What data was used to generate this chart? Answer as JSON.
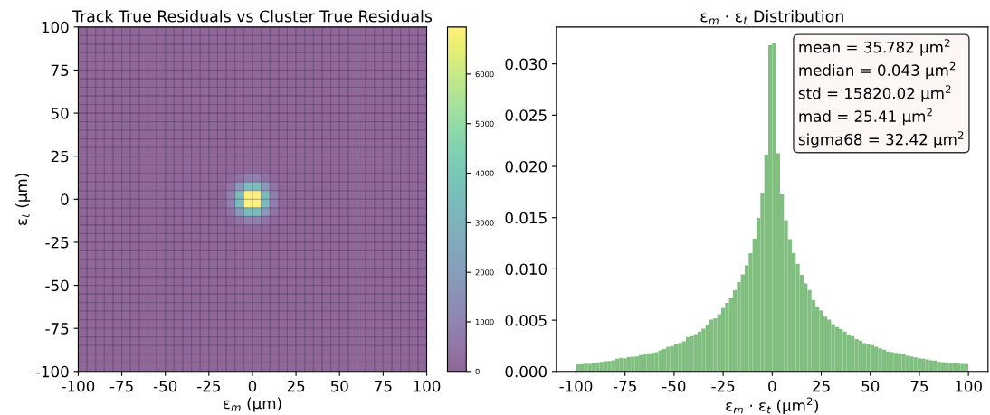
{
  "chart_data": [
    {
      "type": "heatmap",
      "title": "Track True Residuals vs Cluster True Residuals",
      "xlabel": "ε$_{m}$ (μm)",
      "ylabel": "ε$_{t}$ (μm)",
      "xlim": [
        -100,
        100
      ],
      "ylim": [
        -100,
        100
      ],
      "xticks": [
        -100,
        -75,
        -50,
        -25,
        0,
        25,
        50,
        75,
        100
      ],
      "yticks": [
        -100,
        -75,
        -50,
        -25,
        0,
        25,
        50,
        75,
        100
      ],
      "clim": [
        0,
        6950
      ],
      "cticks": [
        0,
        1000,
        2000,
        3000,
        4000,
        5000,
        6000
      ],
      "cells": [
        [
          0,
          0,
          0,
          0,
          0,
          0,
          0,
          0,
          0,
          0,
          0,
          0,
          0,
          0,
          0,
          0,
          0,
          0,
          0,
          0,
          0,
          0,
          0,
          0,
          0,
          0,
          0,
          0,
          0,
          0,
          0,
          0,
          0,
          0,
          0,
          0,
          0,
          0,
          0,
          0
        ],
        [
          0,
          0,
          0,
          0,
          0,
          0,
          0,
          0,
          0,
          0,
          0,
          0,
          0,
          0,
          0,
          0,
          0,
          0,
          0,
          0,
          0,
          0,
          0,
          0,
          0,
          0,
          0,
          0,
          0,
          0,
          0,
          0,
          0,
          0,
          0,
          0,
          0,
          0,
          0,
          0
        ],
        [
          0,
          0,
          0,
          0,
          0,
          0,
          0,
          0,
          0,
          0,
          0,
          0,
          0,
          0,
          0,
          0,
          0,
          0,
          0,
          0,
          0,
          0,
          0,
          0,
          0,
          0,
          0,
          0,
          0,
          0,
          0,
          0,
          0,
          0,
          0,
          0,
          0,
          0,
          0,
          0
        ],
        [
          0,
          0,
          0,
          0,
          0,
          0,
          0,
          0,
          0,
          0,
          0,
          0,
          0,
          0,
          0,
          0,
          0,
          0,
          0,
          0,
          0,
          0,
          0,
          0,
          0,
          0,
          0,
          0,
          0,
          0,
          0,
          0,
          0,
          0,
          0,
          0,
          0,
          0,
          0,
          0
        ],
        [
          0,
          0,
          0,
          0,
          0,
          0,
          0,
          0,
          0,
          0,
          0,
          0,
          0,
          0,
          0,
          0,
          0,
          0,
          0,
          0,
          0,
          0,
          0,
          0,
          0,
          0,
          0,
          0,
          0,
          0,
          0,
          0,
          0,
          0,
          0,
          0,
          0,
          0,
          0,
          0
        ],
        [
          0,
          0,
          0,
          0,
          0,
          0,
          0,
          0,
          0,
          0,
          0,
          0,
          0,
          0,
          0,
          0,
          0,
          0,
          0,
          0,
          0,
          0,
          0,
          0,
          0,
          0,
          0,
          0,
          0,
          0,
          0,
          0,
          0,
          0,
          0,
          0,
          0,
          0,
          0,
          0
        ],
        [
          0,
          0,
          0,
          0,
          0,
          0,
          0,
          0,
          0,
          0,
          0,
          0,
          0,
          0,
          0,
          0,
          0,
          0,
          0,
          0,
          0,
          0,
          0,
          0,
          0,
          0,
          0,
          0,
          0,
          0,
          0,
          0,
          0,
          0,
          0,
          0,
          0,
          0,
          0,
          0
        ],
        [
          0,
          0,
          0,
          0,
          0,
          0,
          0,
          0,
          0,
          0,
          0,
          0,
          0,
          0,
          0,
          0,
          0,
          0,
          0,
          0,
          0,
          0,
          0,
          0,
          0,
          0,
          0,
          0,
          0,
          0,
          0,
          0,
          0,
          0,
          0,
          0,
          0,
          0,
          0,
          0
        ],
        [
          0,
          0,
          0,
          0,
          0,
          0,
          0,
          0,
          0,
          0,
          0,
          0,
          0,
          0,
          0,
          0,
          0,
          0,
          0,
          0,
          0,
          0,
          0,
          0,
          0,
          0,
          0,
          0,
          0,
          0,
          0,
          0,
          0,
          0,
          0,
          0,
          0,
          0,
          0,
          0
        ],
        [
          0,
          0,
          0,
          0,
          0,
          0,
          0,
          0,
          0,
          0,
          0,
          0,
          0,
          0,
          0,
          0,
          0,
          0,
          0,
          0,
          0,
          0,
          0,
          0,
          0,
          0,
          0,
          0,
          0,
          0,
          0,
          0,
          0,
          0,
          0,
          0,
          0,
          0,
          0,
          0
        ],
        [
          0,
          0,
          0,
          0,
          0,
          0,
          0,
          0,
          0,
          0,
          0,
          0,
          0,
          0,
          0,
          0,
          0,
          0,
          0,
          0,
          0,
          0,
          0,
          0,
          0,
          0,
          0,
          0,
          0,
          0,
          0,
          0,
          0,
          0,
          0,
          0,
          0,
          0,
          0,
          0
        ],
        [
          0,
          0,
          0,
          0,
          0,
          0,
          0,
          0,
          0,
          0,
          0,
          0,
          0,
          0,
          0,
          0,
          0,
          0,
          0,
          0,
          0,
          0,
          0,
          0,
          0,
          0,
          0,
          0,
          0,
          0,
          0,
          0,
          0,
          0,
          0,
          0,
          0,
          0,
          0,
          0
        ],
        [
          0,
          0,
          0,
          0,
          0,
          0,
          0,
          0,
          0,
          0,
          0,
          0,
          0,
          0,
          0,
          0,
          0,
          0,
          0,
          0,
          0,
          0,
          0,
          0,
          0,
          0,
          0,
          0,
          0,
          0,
          0,
          0,
          0,
          0,
          0,
          0,
          0,
          0,
          0,
          0
        ],
        [
          0,
          0,
          0,
          0,
          0,
          0,
          0,
          0,
          0,
          0,
          0,
          0,
          0,
          0,
          0,
          0,
          0,
          0,
          0,
          0,
          0,
          0,
          0,
          0,
          0,
          0,
          0,
          0,
          0,
          0,
          0,
          0,
          0,
          0,
          0,
          0,
          0,
          0,
          0,
          0
        ],
        [
          0,
          0,
          0,
          0,
          0,
          0,
          0,
          0,
          0,
          0,
          0,
          0,
          0,
          0,
          0,
          0,
          0,
          0,
          0,
          0,
          0,
          0,
          0,
          0,
          0,
          0,
          0,
          0,
          0,
          0,
          0,
          0,
          0,
          0,
          0,
          0,
          0,
          0,
          0,
          0
        ],
        [
          0,
          0,
          0,
          0,
          0,
          0,
          0,
          0,
          0,
          0,
          0,
          0,
          0,
          0,
          0,
          0,
          0,
          0,
          0,
          0,
          0,
          0,
          0,
          0,
          0,
          0,
          0,
          0,
          0,
          0,
          0,
          0,
          0,
          0,
          0,
          0,
          0,
          0,
          0,
          0
        ],
        [
          0,
          0,
          0,
          0,
          0,
          0,
          0,
          0,
          0,
          0,
          0,
          0,
          0,
          0,
          0,
          0,
          2,
          13,
          50,
          105,
          105,
          50,
          13,
          2,
          0,
          0,
          0,
          0,
          0,
          0,
          0,
          0,
          0,
          0,
          0,
          0,
          0,
          0,
          0,
          0
        ],
        [
          0,
          0,
          0,
          0,
          0,
          0,
          0,
          0,
          0,
          0,
          0,
          0,
          0,
          0,
          0,
          0,
          13,
          105,
          430,
          860,
          860,
          430,
          105,
          13,
          0,
          0,
          0,
          0,
          0,
          0,
          0,
          0,
          0,
          0,
          0,
          0,
          0,
          0,
          0,
          0
        ],
        [
          0,
          0,
          0,
          0,
          0,
          0,
          0,
          0,
          0,
          0,
          0,
          0,
          0,
          0,
          0,
          0,
          50,
          430,
          1720,
          3440,
          3440,
          1720,
          430,
          50,
          0,
          0,
          0,
          0,
          0,
          0,
          0,
          0,
          0,
          0,
          0,
          0,
          0,
          0,
          0,
          0
        ],
        [
          0,
          0,
          0,
          0,
          0,
          0,
          0,
          0,
          0,
          0,
          0,
          0,
          0,
          0,
          0,
          0,
          105,
          860,
          3440,
          6900,
          6900,
          3440,
          860,
          105,
          0,
          0,
          0,
          0,
          0,
          0,
          0,
          0,
          0,
          0,
          0,
          0,
          0,
          0,
          0,
          0
        ],
        [
          0,
          0,
          0,
          0,
          0,
          0,
          0,
          0,
          0,
          0,
          0,
          0,
          0,
          0,
          0,
          0,
          105,
          860,
          3440,
          6900,
          6900,
          3440,
          860,
          105,
          0,
          0,
          0,
          0,
          0,
          0,
          0,
          0,
          0,
          0,
          0,
          0,
          0,
          0,
          0,
          0
        ],
        [
          0,
          0,
          0,
          0,
          0,
          0,
          0,
          0,
          0,
          0,
          0,
          0,
          0,
          0,
          0,
          0,
          50,
          430,
          1720,
          3440,
          3440,
          1720,
          430,
          50,
          0,
          0,
          0,
          0,
          0,
          0,
          0,
          0,
          0,
          0,
          0,
          0,
          0,
          0,
          0,
          0
        ],
        [
          0,
          0,
          0,
          0,
          0,
          0,
          0,
          0,
          0,
          0,
          0,
          0,
          0,
          0,
          0,
          0,
          13,
          105,
          430,
          860,
          860,
          430,
          105,
          13,
          0,
          0,
          0,
          0,
          0,
          0,
          0,
          0,
          0,
          0,
          0,
          0,
          0,
          0,
          0,
          0
        ],
        [
          0,
          0,
          0,
          0,
          0,
          0,
          0,
          0,
          0,
          0,
          0,
          0,
          0,
          0,
          0,
          0,
          2,
          13,
          50,
          105,
          105,
          50,
          13,
          2,
          0,
          0,
          0,
          0,
          0,
          0,
          0,
          0,
          0,
          0,
          0,
          0,
          0,
          0,
          0,
          0
        ],
        [
          0,
          0,
          0,
          0,
          0,
          0,
          0,
          0,
          0,
          0,
          0,
          0,
          0,
          0,
          0,
          0,
          0,
          0,
          0,
          0,
          0,
          0,
          0,
          0,
          0,
          0,
          0,
          0,
          0,
          0,
          0,
          0,
          0,
          0,
          0,
          0,
          0,
          0,
          0,
          0
        ],
        [
          0,
          0,
          0,
          0,
          0,
          0,
          0,
          0,
          0,
          0,
          0,
          0,
          0,
          0,
          0,
          0,
          0,
          0,
          0,
          0,
          0,
          0,
          0,
          0,
          0,
          0,
          0,
          0,
          0,
          0,
          0,
          0,
          0,
          0,
          0,
          0,
          0,
          0,
          0,
          0
        ],
        [
          0,
          0,
          0,
          0,
          0,
          0,
          0,
          0,
          0,
          0,
          0,
          0,
          0,
          0,
          0,
          0,
          0,
          0,
          0,
          0,
          0,
          0,
          0,
          0,
          0,
          0,
          0,
          0,
          0,
          0,
          0,
          0,
          0,
          0,
          0,
          0,
          0,
          0,
          0,
          0
        ],
        [
          0,
          0,
          0,
          0,
          0,
          0,
          0,
          0,
          0,
          0,
          0,
          0,
          0,
          0,
          0,
          0,
          0,
          0,
          0,
          0,
          0,
          0,
          0,
          0,
          0,
          0,
          0,
          0,
          0,
          0,
          0,
          0,
          0,
          0,
          0,
          0,
          0,
          0,
          0,
          0
        ],
        [
          0,
          0,
          0,
          0,
          0,
          0,
          0,
          0,
          0,
          0,
          0,
          0,
          0,
          0,
          0,
          0,
          0,
          0,
          0,
          0,
          0,
          0,
          0,
          0,
          0,
          0,
          0,
          0,
          0,
          0,
          0,
          0,
          0,
          0,
          0,
          0,
          0,
          0,
          0,
          0
        ],
        [
          0,
          0,
          0,
          0,
          0,
          0,
          0,
          0,
          0,
          0,
          0,
          0,
          0,
          0,
          0,
          0,
          0,
          0,
          0,
          0,
          0,
          0,
          0,
          0,
          0,
          0,
          0,
          0,
          0,
          0,
          0,
          0,
          0,
          0,
          0,
          0,
          0,
          0,
          0,
          0
        ],
        [
          0,
          0,
          0,
          0,
          0,
          0,
          0,
          0,
          0,
          0,
          0,
          0,
          0,
          0,
          0,
          0,
          0,
          0,
          0,
          0,
          0,
          0,
          0,
          0,
          0,
          0,
          0,
          0,
          0,
          0,
          0,
          0,
          0,
          0,
          0,
          0,
          0,
          0,
          0,
          0
        ],
        [
          0,
          0,
          0,
          0,
          0,
          0,
          0,
          0,
          0,
          0,
          0,
          0,
          0,
          0,
          0,
          0,
          0,
          0,
          0,
          0,
          0,
          0,
          0,
          0,
          0,
          0,
          0,
          0,
          0,
          0,
          0,
          0,
          0,
          0,
          0,
          0,
          0,
          0,
          0,
          0
        ],
        [
          0,
          0,
          0,
          0,
          0,
          0,
          0,
          0,
          0,
          0,
          0,
          0,
          0,
          0,
          0,
          0,
          0,
          0,
          0,
          0,
          0,
          0,
          0,
          0,
          0,
          0,
          0,
          0,
          0,
          0,
          0,
          0,
          0,
          0,
          0,
          0,
          0,
          0,
          0,
          0
        ],
        [
          0,
          0,
          0,
          0,
          0,
          0,
          0,
          0,
          0,
          0,
          0,
          0,
          0,
          0,
          0,
          0,
          0,
          0,
          0,
          0,
          0,
          0,
          0,
          0,
          0,
          0,
          0,
          0,
          0,
          0,
          0,
          0,
          0,
          0,
          0,
          0,
          0,
          0,
          0,
          0
        ],
        [
          0,
          0,
          0,
          0,
          0,
          0,
          0,
          0,
          0,
          0,
          0,
          0,
          0,
          0,
          0,
          0,
          0,
          0,
          0,
          0,
          0,
          0,
          0,
          0,
          0,
          0,
          0,
          0,
          0,
          0,
          0,
          0,
          0,
          0,
          0,
          0,
          0,
          0,
          0,
          0
        ],
        [
          0,
          0,
          0,
          0,
          0,
          0,
          0,
          0,
          0,
          0,
          0,
          0,
          0,
          0,
          0,
          0,
          0,
          0,
          0,
          0,
          0,
          0,
          0,
          0,
          0,
          0,
          0,
          0,
          0,
          0,
          0,
          0,
          0,
          0,
          0,
          0,
          0,
          0,
          0,
          0
        ],
        [
          0,
          0,
          0,
          0,
          0,
          0,
          0,
          0,
          0,
          0,
          0,
          0,
          0,
          0,
          0,
          0,
          0,
          0,
          0,
          0,
          0,
          0,
          0,
          0,
          0,
          0,
          0,
          0,
          0,
          0,
          0,
          0,
          0,
          0,
          0,
          0,
          0,
          0,
          0,
          0
        ],
        [
          0,
          0,
          0,
          0,
          0,
          0,
          0,
          0,
          0,
          0,
          0,
          0,
          0,
          0,
          0,
          0,
          0,
          0,
          0,
          0,
          0,
          0,
          0,
          0,
          0,
          0,
          0,
          0,
          0,
          0,
          0,
          0,
          0,
          0,
          0,
          0,
          0,
          0,
          0,
          0
        ],
        [
          0,
          0,
          0,
          0,
          0,
          0,
          0,
          0,
          0,
          0,
          0,
          0,
          0,
          0,
          0,
          0,
          0,
          0,
          0,
          0,
          0,
          0,
          0,
          0,
          0,
          0,
          0,
          0,
          0,
          0,
          0,
          0,
          0,
          0,
          0,
          0,
          0,
          0,
          0,
          0
        ],
        [
          0,
          0,
          0,
          0,
          0,
          0,
          0,
          0,
          0,
          0,
          0,
          0,
          0,
          0,
          0,
          0,
          0,
          0,
          0,
          0,
          0,
          0,
          0,
          0,
          0,
          0,
          0,
          0,
          0,
          0,
          0,
          0,
          0,
          0,
          0,
          0,
          0,
          0,
          0,
          0
        ]
      ]
    },
    {
      "type": "histogram",
      "title": "ε$_{m}$ · ε$_{t}$ Distribution",
      "xlabel": "ε$_{m}$ · ε$_{t}$ (μm$^{2}$)",
      "color": "#80bf80",
      "xlim": [
        -110,
        110
      ],
      "ylim": [
        0,
        0.0336
      ],
      "xticks": [
        -100,
        -75,
        -50,
        -25,
        0,
        25,
        50,
        75,
        100
      ],
      "yticks": [
        {
          "value": 0,
          "label": "0.000"
        },
        {
          "value": 0.005,
          "label": "0.005"
        },
        {
          "value": 0.01,
          "label": "0.010"
        },
        {
          "value": 0.015,
          "label": "0.015"
        },
        {
          "value": 0.02,
          "label": "0.020"
        },
        {
          "value": 0.025,
          "label": "0.025"
        },
        {
          "value": 0.03,
          "label": "0.030"
        }
      ],
      "bins": [
        -100,
        -98,
        -96,
        -94,
        -92,
        -90,
        -88,
        -86,
        -84,
        -82,
        -80,
        -78,
        -76,
        -74,
        -72,
        -70,
        -68,
        -66,
        -64,
        -62,
        -60,
        -58,
        -56,
        -54,
        -52,
        -50,
        -48,
        -46,
        -44,
        -42,
        -40,
        -38,
        -36,
        -34,
        -32,
        -30,
        -28,
        -26,
        -24,
        -22,
        -20,
        -18,
        -16,
        -14,
        -12,
        -10,
        -8,
        -6,
        -4,
        -2,
        0,
        2,
        4,
        6,
        8,
        10,
        12,
        14,
        16,
        18,
        20,
        22,
        24,
        26,
        28,
        30,
        32,
        34,
        36,
        38,
        40,
        42,
        44,
        46,
        48,
        50,
        52,
        54,
        56,
        58,
        60,
        62,
        64,
        66,
        68,
        70,
        72,
        74,
        76,
        78,
        80,
        82,
        84,
        86,
        88,
        90,
        92,
        94,
        96,
        98,
        100
      ],
      "values": [
        0.00068,
        0.00071,
        0.00076,
        0.00074,
        0.00085,
        0.00088,
        0.00094,
        0.001,
        0.00103,
        0.00109,
        0.00124,
        0.00132,
        0.00129,
        0.00141,
        0.00144,
        0.00147,
        0.00159,
        0.00168,
        0.00176,
        0.00182,
        0.00188,
        0.00206,
        0.00218,
        0.00241,
        0.00247,
        0.00271,
        0.00276,
        0.00294,
        0.00335,
        0.00344,
        0.00365,
        0.00388,
        0.00418,
        0.00447,
        0.00506,
        0.00518,
        0.00559,
        0.00618,
        0.00668,
        0.00712,
        0.00791,
        0.00871,
        0.00947,
        0.01035,
        0.01153,
        0.01294,
        0.01497,
        0.01741,
        0.02115,
        0.03182,
        0.032,
        0.02129,
        0.01726,
        0.01476,
        0.01291,
        0.01153,
        0.0105,
        0.00941,
        0.00859,
        0.00794,
        0.00697,
        0.00624,
        0.00594,
        0.00535,
        0.00506,
        0.00462,
        0.00432,
        0.00412,
        0.00388,
        0.00359,
        0.00344,
        0.00315,
        0.003,
        0.00276,
        0.00265,
        0.00256,
        0.00241,
        0.00226,
        0.00212,
        0.00194,
        0.00188,
        0.00182,
        0.00176,
        0.00168,
        0.00153,
        0.00147,
        0.00138,
        0.00129,
        0.00124,
        0.00118,
        0.00109,
        0.00106,
        0.00094,
        0.00091,
        0.00088,
        0.00085,
        0.00079,
        0.00076,
        0.00074,
        0.00071
      ],
      "annotations": [
        "mean = 35.782 μm$^{2}$\nmedian = 0.043 μm$^{2}$\nstd = 15820.02 μm$^{2}$\nmad = 25.41 μm$^{2}$\nsigma68 = 32.42 μm$^{2}$"
      ]
    }
  ]
}
